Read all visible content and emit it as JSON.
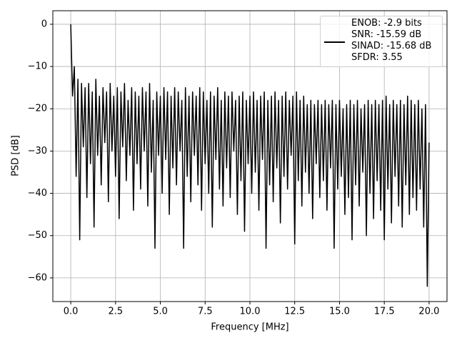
{
  "chart_data": {
    "type": "line",
    "xlabel": "Frequency [MHz]",
    "ylabel": "PSD [dB]",
    "grid": true,
    "legend": "upper right",
    "xlim": [
      -1.0,
      21.0
    ],
    "ylim": [
      -65.6,
      3.2
    ],
    "xticks": [
      {
        "value": 0,
        "label": "0.0"
      },
      2.5,
      {
        "value": 5,
        "label": "5.0"
      },
      7.5,
      {
        "value": 10,
        "label": "10.0"
      },
      12.5,
      {
        "value": 15,
        "label": "15.0"
      },
      17.5,
      {
        "value": 20,
        "label": "20.0"
      }
    ],
    "yticks": [
      {
        "value": -60,
        "label": "−60"
      },
      {
        "value": -50,
        "label": "−50"
      },
      {
        "value": -40,
        "label": "−40"
      },
      {
        "value": -30,
        "label": "−30"
      },
      {
        "value": -20,
        "label": "−20"
      },
      {
        "value": -10,
        "label": "−10"
      },
      0
    ],
    "x": [
      0,
      0.1,
      0.2,
      0.3,
      0.4,
      0.5,
      0.6,
      0.7,
      0.8,
      0.9,
      1,
      1.1,
      1.2,
      1.3,
      1.4,
      1.5,
      1.6,
      1.7,
      1.8,
      1.9,
      2,
      2.1,
      2.2,
      2.3,
      2.4,
      2.5,
      2.6,
      2.7,
      2.8,
      2.9,
      3,
      3.1,
      3.2,
      3.3,
      3.4,
      3.5,
      3.6,
      3.7,
      3.8,
      3.9,
      4,
      4.1,
      4.2,
      4.3,
      4.4,
      4.5,
      4.6,
      4.7,
      4.8,
      4.9,
      5,
      5.1,
      5.2,
      5.3,
      5.4,
      5.5,
      5.6,
      5.7,
      5.8,
      5.9,
      6,
      6.1,
      6.2,
      6.3,
      6.4,
      6.5,
      6.6,
      6.7,
      6.8,
      6.9,
      7,
      7.1,
      7.2,
      7.3,
      7.4,
      7.5,
      7.6,
      7.7,
      7.8,
      7.9,
      8,
      8.1,
      8.2,
      8.3,
      8.4,
      8.5,
      8.6,
      8.7,
      8.8,
      8.9,
      9,
      9.1,
      9.2,
      9.3,
      9.4,
      9.5,
      9.6,
      9.7,
      9.8,
      9.9,
      10,
      10.1,
      10.2,
      10.3,
      10.4,
      10.5,
      10.6,
      10.7,
      10.8,
      10.9,
      11,
      11.1,
      11.2,
      11.3,
      11.4,
      11.5,
      11.6,
      11.7,
      11.8,
      11.9,
      12,
      12.1,
      12.2,
      12.3,
      12.4,
      12.5,
      12.6,
      12.7,
      12.8,
      12.9,
      13,
      13.1,
      13.2,
      13.3,
      13.4,
      13.5,
      13.6,
      13.7,
      13.8,
      13.9,
      14,
      14.1,
      14.2,
      14.3,
      14.4,
      14.5,
      14.6,
      14.7,
      14.8,
      14.9,
      15,
      15.1,
      15.2,
      15.3,
      15.4,
      15.5,
      15.6,
      15.7,
      15.8,
      15.9,
      16,
      16.1,
      16.2,
      16.3,
      16.4,
      16.5,
      16.6,
      16.7,
      16.8,
      16.9,
      17,
      17.1,
      17.2,
      17.3,
      17.4,
      17.5,
      17.6,
      17.7,
      17.8,
      17.9,
      18,
      18.1,
      18.2,
      18.3,
      18.4,
      18.5,
      18.6,
      18.7,
      18.8,
      18.9,
      19,
      19.1,
      19.2,
      19.3,
      19.4,
      19.5,
      19.6,
      19.7,
      19.8,
      19.9,
      20
    ],
    "series": [
      {
        "name": "ENOB: -2.9 bits\nSNR: -15.59 dB\nSINAD: -15.68 dB\nSFDR: 3.55",
        "color": "#000000",
        "values": [
          0,
          -17,
          -10,
          -36,
          -13,
          -51,
          -14,
          -29,
          -15,
          -41,
          -14,
          -33,
          -16,
          -48,
          -13,
          -31,
          -17,
          -38,
          -15,
          -28,
          -16,
          -42,
          -14,
          -30,
          -17,
          -36,
          -15,
          -46,
          -16,
          -29,
          -14,
          -37,
          -18,
          -31,
          -15,
          -44,
          -16,
          -33,
          -17,
          -39,
          -15,
          -30,
          -16,
          -43,
          -14,
          -35,
          -18,
          -53,
          -16,
          -31,
          -17,
          -40,
          -15,
          -32,
          -16,
          -45,
          -17,
          -34,
          -15,
          -38,
          -16,
          -30,
          -18,
          -53,
          -15,
          -36,
          -17,
          -42,
          -16,
          -31,
          -17,
          -38,
          -15,
          -44,
          -16,
          -33,
          -18,
          -40,
          -16,
          -48,
          -17,
          -32,
          -15,
          -39,
          -18,
          -43,
          -16,
          -34,
          -17,
          -41,
          -16,
          -30,
          -18,
          -45,
          -17,
          -37,
          -16,
          -49,
          -18,
          -33,
          -17,
          -40,
          -16,
          -35,
          -18,
          -44,
          -17,
          -32,
          -16,
          -53,
          -18,
          -38,
          -17,
          -42,
          -16,
          -34,
          -18,
          -47,
          -17,
          -36,
          -16,
          -39,
          -18,
          -31,
          -17,
          -52,
          -16,
          -37,
          -18,
          -43,
          -17,
          -35,
          -19,
          -40,
          -18,
          -46,
          -19,
          -33,
          -18,
          -41,
          -19,
          -37,
          -18,
          -44,
          -19,
          -34,
          -18,
          -53,
          -19,
          -39,
          -18,
          -36,
          -20,
          -45,
          -19,
          -41,
          -18,
          -51,
          -19,
          -38,
          -18,
          -43,
          -20,
          -35,
          -19,
          -50,
          -18,
          -40,
          -19,
          -46,
          -18,
          -37,
          -19,
          -44,
          -18,
          -51,
          -17,
          -39,
          -19,
          -47,
          -18,
          -36,
          -19,
          -43,
          -18,
          -48,
          -19,
          -38,
          -17,
          -45,
          -18,
          -41,
          -19,
          -44,
          -18,
          -39,
          -20,
          -48,
          -19,
          -62,
          -28
        ]
      }
    ]
  }
}
